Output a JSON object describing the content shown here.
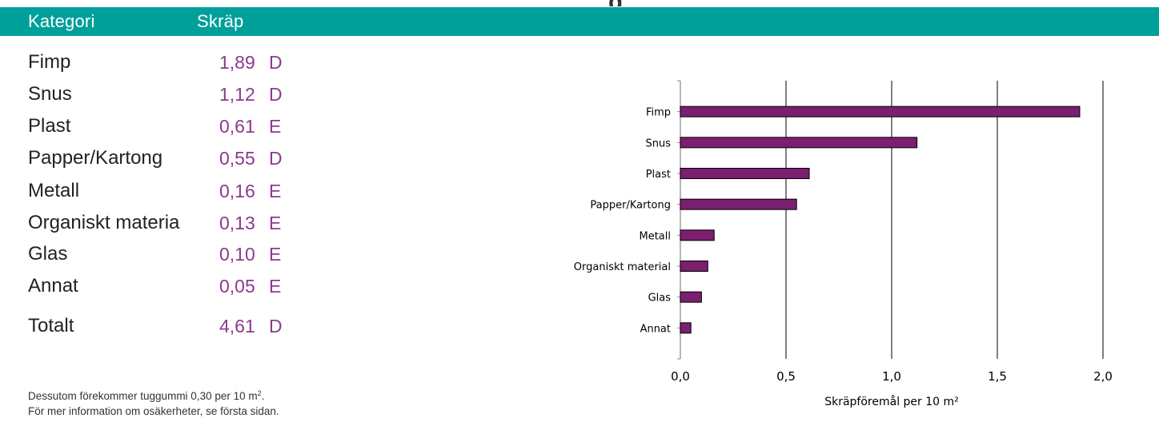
{
  "page": {
    "top_cut_text": "g"
  },
  "header": {
    "col1": "Kategori",
    "col2": "Skräp",
    "color": "#00a09a"
  },
  "table": {
    "rows": [
      {
        "category": "Fimp",
        "value": "1,89",
        "grade": "D"
      },
      {
        "category": "Snus",
        "value": "1,12",
        "grade": "D"
      },
      {
        "category": "Plast",
        "value": "0,61",
        "grade": "E"
      },
      {
        "category": "Papper/Kartong",
        "value": "0,55",
        "grade": "D"
      },
      {
        "category": "Metall",
        "value": "0,16",
        "grade": "E"
      },
      {
        "category": "Organiskt materia",
        "value": "0,13",
        "grade": "E"
      },
      {
        "category": "Glas",
        "value": "0,10",
        "grade": "E"
      },
      {
        "category": "Annat",
        "value": "0,05",
        "grade": "E"
      }
    ],
    "total": {
      "category": "Totalt",
      "value": "4,61",
      "grade": "D"
    },
    "value_color": "#8b3a8f"
  },
  "footnotes": {
    "line1_text": "Dessutom förekommer tuggummi  0,30 per 10 m",
    "line1_sup": "2",
    "line1_end": ".",
    "line2": "För mer information om osäkerheter, se första sidan."
  },
  "chart_data": {
    "type": "bar",
    "orientation": "horizontal",
    "categories": [
      "Fimp",
      "Snus",
      "Plast",
      "Papper/Kartong",
      "Metall",
      "Organiskt material",
      "Glas",
      "Annat"
    ],
    "values": [
      1.89,
      1.12,
      0.61,
      0.55,
      0.16,
      0.13,
      0.1,
      0.05
    ],
    "xlim": [
      0,
      2.0
    ],
    "xticks": [
      0,
      0.5,
      1.0,
      1.5,
      2.0
    ],
    "xtick_labels": [
      "0,0",
      "0,5",
      "1,0",
      "1,5",
      "2,0"
    ],
    "xlabel": "Skräpföremål per 10 m²",
    "ylabel": "",
    "title": "",
    "grid": "vertical",
    "bar_color": "#7b1f70",
    "bar_edge": "#000000"
  }
}
